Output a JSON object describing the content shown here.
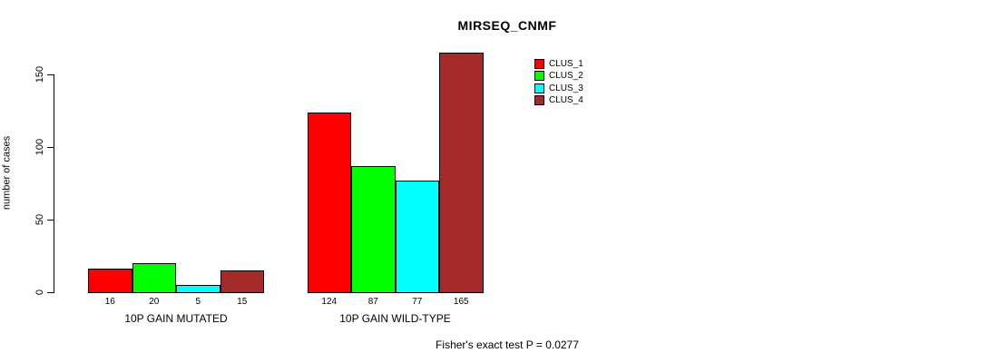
{
  "background_color": "#FFFFFF",
  "chart_data": {
    "type": "bar",
    "title": "MIRSEQ_CNMF",
    "ylabel": "number of cases",
    "xlabel": "Fisher's exact test P = 0.0277",
    "categories": [
      "10P GAIN MUTATED",
      "10P GAIN WILD-TYPE"
    ],
    "series": [
      {
        "name": "CLUS_1",
        "color": "#FF0000",
        "values": [
          16,
          124
        ]
      },
      {
        "name": "CLUS_2",
        "color": "#00FF00",
        "values": [
          20,
          87
        ]
      },
      {
        "name": "CLUS_3",
        "color": "#00FFFF",
        "values": [
          5,
          77
        ]
      },
      {
        "name": "CLUS_4",
        "color": "#A52A2A",
        "values": [
          15,
          165
        ]
      }
    ],
    "yticks": [
      0,
      50,
      100,
      150
    ],
    "ylim": [
      0,
      165
    ],
    "bar_value_labels_shown": true,
    "grid": false,
    "legend_position": "top-right",
    "legend_entries": [
      "CLUS_1",
      "CLUS_2",
      "CLUS_3",
      "CLUS_4"
    ]
  }
}
